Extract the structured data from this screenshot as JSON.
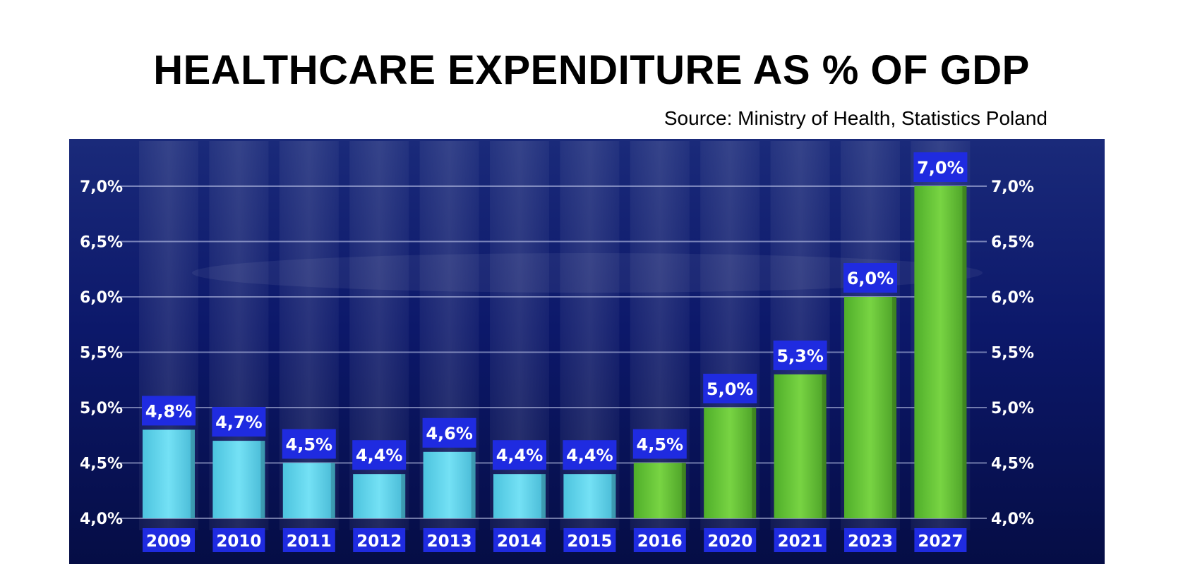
{
  "chart_data": {
    "type": "bar",
    "title": "HEALTHCARE EXPENDITURE AS % OF GDP",
    "subtitle": "Source: Ministry of Health, Statistics Poland",
    "categories": [
      "2009",
      "2010",
      "2011",
      "2012",
      "2013",
      "2014",
      "2015",
      "2016",
      "2020",
      "2021",
      "2023",
      "2027"
    ],
    "values": [
      4.8,
      4.7,
      4.5,
      4.4,
      4.6,
      4.4,
      4.4,
      4.5,
      5.0,
      5.3,
      6.0,
      7.0
    ],
    "value_labels": [
      "4,8%",
      "4,7%",
      "4,5%",
      "4,4%",
      "4,6%",
      "4,4%",
      "4,4%",
      "4,5%",
      "5,0%",
      "5,3%",
      "6,0%",
      "7,0%"
    ],
    "ylim": [
      4.0,
      7.0
    ],
    "yticks": [
      4.0,
      4.5,
      5.0,
      5.5,
      6.0,
      6.5,
      7.0
    ],
    "ytick_labels": [
      "4,0%",
      "4,5%",
      "5,0%",
      "5,5%",
      "6,0%",
      "6,5%",
      "7,0%"
    ],
    "xlabel": "",
    "ylabel": "",
    "grid": true,
    "legend": "none",
    "colors": {
      "background": "#0a1560",
      "historical_bar": "#5fd3ec",
      "projection_bar": "#6cc73a",
      "label_box": "#1f2be0"
    },
    "historical_until_index": 6
  }
}
